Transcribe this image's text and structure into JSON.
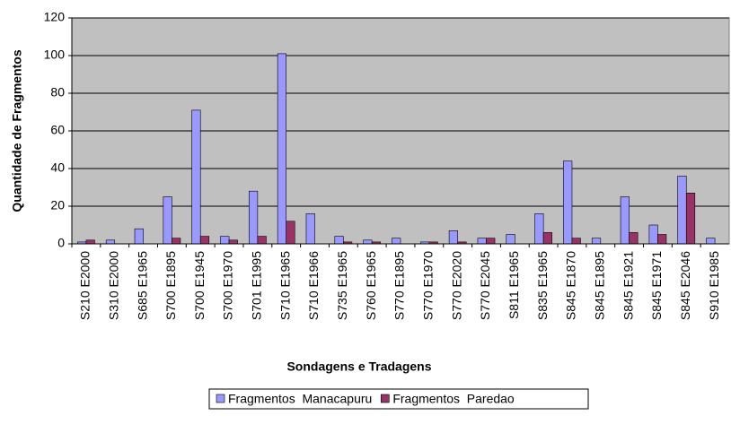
{
  "chart_data": {
    "type": "bar",
    "categories": [
      "S210 E2000",
      "S310 E2000",
      "S685 E1965",
      "S700 E1895",
      "S700 E1945",
      "S700 E1970",
      "S701 E1995",
      "S710 E1965",
      "S710 E1966",
      "S735 E1965",
      "S760 E1965",
      "S770 E1895",
      "S770 E1970",
      "S770 E2020",
      "S770 E2045",
      "S811 E1965",
      "S835 E1965",
      "S845 E1870",
      "S845 E1895",
      "S845 E1921",
      "S845 E1971",
      "S845 E2046",
      "S910 E1985"
    ],
    "series": [
      {
        "name": "Fragmentos  Manacapuru",
        "color": "#9999ff",
        "values": [
          1,
          2,
          8,
          25,
          71,
          4,
          28,
          101,
          16,
          4,
          2,
          3,
          1,
          7,
          3,
          5,
          16,
          44,
          3,
          25,
          10,
          36,
          3
        ]
      },
      {
        "name": "Fragmentos  Paredao",
        "color": "#993366",
        "values": [
          2,
          0,
          0,
          3,
          4,
          2,
          4,
          12,
          0,
          1,
          1,
          0,
          1,
          1,
          3,
          0,
          6,
          3,
          0,
          6,
          5,
          27,
          0
        ]
      }
    ],
    "ylim": [
      0,
      120
    ],
    "yticks": [
      0,
      20,
      40,
      60,
      80,
      100,
      120
    ],
    "grid": true,
    "xlabel": "Sondagens e Tradagens",
    "ylabel": "Quantidade de Fragmentos",
    "legend": "bottom"
  }
}
